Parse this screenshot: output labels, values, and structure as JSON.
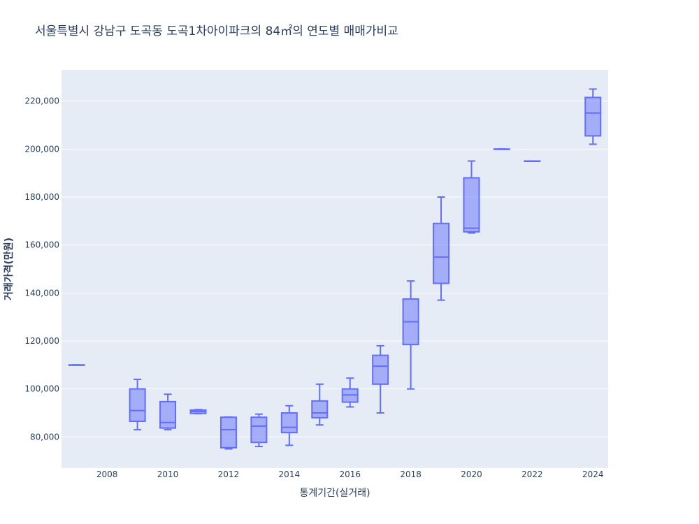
{
  "chart_data": {
    "type": "box",
    "title": "서울특별시 강남구 도곡동 도곡1차아이파크의 84㎡의 연도별 매매가비교",
    "xlabel": "통계기간(실거래)",
    "ylabel": "거래가격(만원)",
    "xlim": [
      2006.5,
      2024.5
    ],
    "ylim": [
      67000,
      233000
    ],
    "x_ticks": [
      2008,
      2010,
      2012,
      2014,
      2016,
      2018,
      2020,
      2022,
      2024
    ],
    "y_ticks": [
      80000,
      100000,
      120000,
      140000,
      160000,
      180000,
      200000,
      220000
    ],
    "y_tick_labels": [
      "80,000",
      "100,000",
      "120,000",
      "140,000",
      "160,000",
      "180,000",
      "200,000",
      "220,000"
    ],
    "colors": {
      "line": "#636efa",
      "fill": "rgba(99,110,250,0.5)",
      "plot_bg": "#e5ecf6",
      "grid": "#ffffff"
    },
    "boxes": [
      {
        "year": 2007,
        "min": 110000,
        "q1": 110000,
        "median": 110000,
        "q3": 110000,
        "max": 110000
      },
      {
        "year": 2009,
        "min": 83000,
        "q1": 86500,
        "median": 91000,
        "q3": 100000,
        "max": 104000
      },
      {
        "year": 2010,
        "min": 83000,
        "q1": 83700,
        "median": 86000,
        "q3": 94700,
        "max": 97800
      },
      {
        "year": 2011,
        "min": 89700,
        "q1": 89800,
        "median": 90600,
        "q3": 91200,
        "max": 91400
      },
      {
        "year": 2012,
        "min": 75000,
        "q1": 75500,
        "median": 83000,
        "q3": 88200,
        "max": 88300
      },
      {
        "year": 2013,
        "min": 76000,
        "q1": 77700,
        "median": 84500,
        "q3": 88200,
        "max": 89500
      },
      {
        "year": 2014,
        "min": 76500,
        "q1": 81800,
        "median": 84000,
        "q3": 90000,
        "max": 93000
      },
      {
        "year": 2015,
        "min": 85000,
        "q1": 88000,
        "median": 90000,
        "q3": 95000,
        "max": 102000
      },
      {
        "year": 2016,
        "min": 92500,
        "q1": 94500,
        "median": 97500,
        "q3": 100000,
        "max": 104500
      },
      {
        "year": 2017,
        "min": 90000,
        "q1": 102000,
        "median": 109500,
        "q3": 114000,
        "max": 118000
      },
      {
        "year": 2018,
        "min": 100000,
        "q1": 118500,
        "median": 128000,
        "q3": 137500,
        "max": 145000
      },
      {
        "year": 2019,
        "min": 137000,
        "q1": 144000,
        "median": 155000,
        "q3": 169000,
        "max": 180000
      },
      {
        "year": 2020,
        "min": 165000,
        "q1": 165500,
        "median": 167000,
        "q3": 188000,
        "max": 195000
      },
      {
        "year": 2021,
        "min": 200000,
        "q1": 200000,
        "median": 200000,
        "q3": 200000,
        "max": 200000
      },
      {
        "year": 2022,
        "min": 195000,
        "q1": 195000,
        "median": 195000,
        "q3": 195000,
        "max": 195000
      },
      {
        "year": 2024,
        "min": 202000,
        "q1": 205500,
        "median": 215000,
        "q3": 221500,
        "max": 225000
      }
    ]
  }
}
